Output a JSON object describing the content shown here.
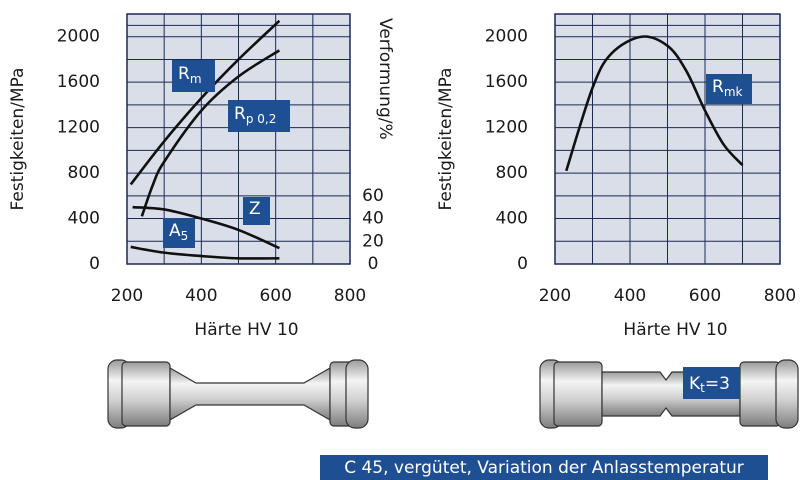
{
  "chart_data": [
    {
      "type": "line",
      "x_label": "Härte HV 10",
      "y_label": "Festigkeiten/MPa",
      "y2_label": "Verformung/%",
      "xlim": [
        200,
        800
      ],
      "xticks": [
        200,
        400,
        600,
        800
      ],
      "ylim": [
        0,
        2200
      ],
      "yticks": [
        0,
        400,
        800,
        1200,
        1600,
        2000
      ],
      "y2lim": [
        0,
        220
      ],
      "y2ticks": [
        0,
        20,
        40,
        60
      ],
      "grid": true,
      "series": [
        {
          "name": "R",
          "subscript": "m",
          "color": "#111111",
          "x": [
            210,
            300,
            400,
            500,
            610
          ],
          "values": [
            700,
            1080,
            1460,
            1800,
            2140
          ]
        },
        {
          "name": "R",
          "subscript": "p 0,2",
          "color": "#111111",
          "x": [
            240,
            270,
            300,
            400,
            500,
            610
          ],
          "values": [
            420,
            700,
            900,
            1350,
            1650,
            1880
          ]
        },
        {
          "name": "Z",
          "color": "#111111",
          "axis": "y2",
          "x": [
            215,
            300,
            400,
            500,
            610
          ],
          "values": [
            50,
            48,
            40,
            30,
            14
          ]
        },
        {
          "name": "A",
          "subscript": "5",
          "color": "#111111",
          "axis": "y2",
          "x": [
            210,
            300,
            400,
            500,
            610
          ],
          "values": [
            15,
            10,
            7,
            5,
            5
          ]
        }
      ]
    },
    {
      "type": "line",
      "x_label": "Härte HV 10",
      "y_label": "Festigkeiten/MPa",
      "xlim": [
        200,
        800
      ],
      "xticks": [
        200,
        400,
        600,
        800
      ],
      "ylim": [
        0,
        2200
      ],
      "yticks": [
        0,
        400,
        800,
        1200,
        1600,
        2000
      ],
      "grid": true,
      "series": [
        {
          "name": "R",
          "subscript": "mk",
          "color": "#111111",
          "x": [
            230,
            300,
            350,
            430,
            500,
            550,
            600,
            650,
            700
          ],
          "values": [
            820,
            1550,
            1850,
            2000,
            1920,
            1700,
            1350,
            1050,
            870
          ]
        }
      ]
    }
  ],
  "annotations": {
    "notch": {
      "text": "K",
      "subscript": "t",
      "suffix": "=3"
    },
    "footer": "C 45, vergütet, Variation der Anlasstemperatur"
  }
}
